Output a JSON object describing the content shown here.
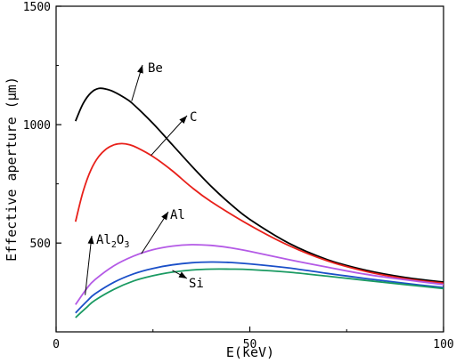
{
  "chart_data": {
    "type": "line",
    "xlabel": "E(keV)",
    "ylabel": "Effective aperture (μm)",
    "xlim": [
      0,
      100
    ],
    "ylim": [
      125,
      1500
    ],
    "xticks": [
      0,
      50,
      100
    ],
    "yticks": [
      500,
      1000,
      1500
    ],
    "xtick_labels": [
      "0",
      "50",
      "100"
    ],
    "ytick_labels": [
      "500",
      "1000",
      "1500"
    ],
    "grid": false,
    "legend": "none",
    "series": [
      {
        "name": "Be",
        "color": "#000000",
        "x": [
          5,
          7,
          9,
          11,
          13,
          15,
          18,
          20,
          25,
          30,
          35,
          40,
          45,
          50,
          60,
          70,
          80,
          90,
          100
        ],
        "y": [
          1015,
          1090,
          1135,
          1153,
          1150,
          1138,
          1110,
          1085,
          1005,
          915,
          825,
          740,
          665,
          600,
          500,
          430,
          385,
          355,
          335
        ]
      },
      {
        "name": "C",
        "color": "#e8201a",
        "x": [
          5,
          7,
          9,
          11,
          13,
          15,
          17,
          19,
          21,
          25,
          30,
          35,
          40,
          50,
          60,
          70,
          80,
          90,
          100
        ],
        "y": [
          590,
          720,
          810,
          865,
          898,
          915,
          920,
          915,
          902,
          865,
          805,
          735,
          675,
          575,
          490,
          425,
          380,
          350,
          330
        ]
      },
      {
        "name": "Al",
        "color": "#b45ae6",
        "x": [
          5,
          8,
          10,
          15,
          20,
          25,
          30,
          35,
          40,
          45,
          50,
          60,
          70,
          80,
          90,
          100
        ],
        "y": [
          240,
          310,
          345,
          405,
          445,
          472,
          487,
          493,
          490,
          480,
          465,
          430,
          398,
          368,
          345,
          325
        ]
      },
      {
        "name": "Al2O3",
        "color": "#1a4fc8",
        "x": [
          5,
          8,
          10,
          15,
          20,
          25,
          30,
          35,
          40,
          45,
          50,
          60,
          70,
          80,
          90,
          100
        ],
        "y": [
          205,
          255,
          285,
          335,
          370,
          393,
          408,
          417,
          420,
          418,
          412,
          395,
          372,
          350,
          330,
          312
        ]
      },
      {
        "name": "Si",
        "color": "#1a9a62",
        "x": [
          5,
          8,
          10,
          15,
          20,
          25,
          30,
          35,
          40,
          45,
          50,
          60,
          70,
          80,
          90,
          100
        ],
        "y": [
          185,
          230,
          258,
          305,
          340,
          362,
          377,
          386,
          390,
          390,
          388,
          377,
          360,
          342,
          325,
          308
        ]
      }
    ],
    "annotations": [
      {
        "label": "Be",
        "text": "Be"
      },
      {
        "label": "C",
        "text": "C"
      },
      {
        "label": "Al",
        "text": "Al"
      },
      {
        "label": "Al2O3",
        "text": "Al2O3",
        "base": "Al",
        "sub1": "2",
        "mid": "O",
        "sub2": "3"
      },
      {
        "label": "Si",
        "text": "Si"
      }
    ]
  }
}
